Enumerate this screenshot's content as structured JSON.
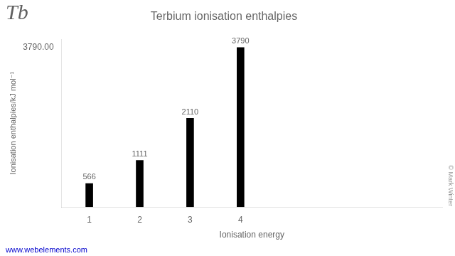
{
  "chart_data": {
    "type": "bar",
    "title": "Terbium ionisation enthalpies",
    "x_label": "Ionisation energy",
    "y_label": "Ionisation enthalpies/kJ mol⁻¹",
    "x": [
      1,
      2,
      3,
      4
    ],
    "values": [
      566,
      1111,
      2110,
      3790
    ],
    "color": "#000000",
    "xlim": [
      0.45,
      8.0
    ],
    "xticks": [
      1,
      2,
      3,
      4
    ],
    "ylim": [
      0,
      3979.5
    ],
    "yticks": [
      {
        "value": 3790,
        "label": "3790.00"
      }
    ],
    "grid": false,
    "data_labels": true,
    "annotations": [
      "Tb",
      "© Mark Winter",
      "www.webelements.com"
    ]
  }
}
